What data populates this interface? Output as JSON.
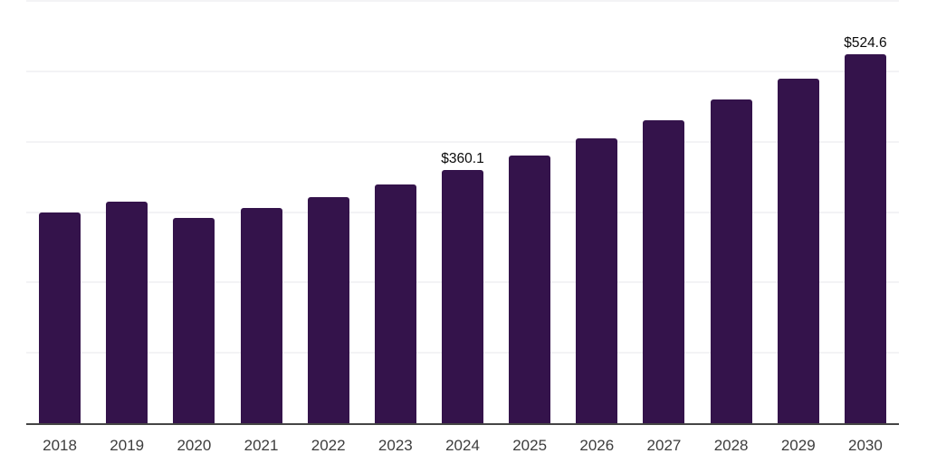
{
  "chart_data": {
    "type": "bar",
    "title": "",
    "xlabel": "",
    "ylabel": "",
    "categories": [
      "2018",
      "2019",
      "2020",
      "2021",
      "2022",
      "2023",
      "2024",
      "2025",
      "2026",
      "2027",
      "2028",
      "2029",
      "2030"
    ],
    "values": [
      300,
      315.5,
      292.3,
      306.5,
      322,
      339,
      360.1,
      380.3,
      404.7,
      430.4,
      460.4,
      490.4,
      524.6
    ],
    "value_labels": [
      "",
      "",
      "",
      "",
      "",
      "",
      "$360.1",
      "",
      "",
      "",
      "",
      "",
      "$524.6"
    ],
    "ylim": [
      0,
      600
    ],
    "grid_interval": 100,
    "grid": "horizontal",
    "legend": "none",
    "y_tick_labels_visible": false,
    "colors": {
      "bar": "#34134B",
      "gridline": "#f3f3f5",
      "axis_line": "#454545",
      "tick_label": "#3d3d3d",
      "value_label": "#0b0b0b",
      "background": "#ffffff"
    }
  }
}
